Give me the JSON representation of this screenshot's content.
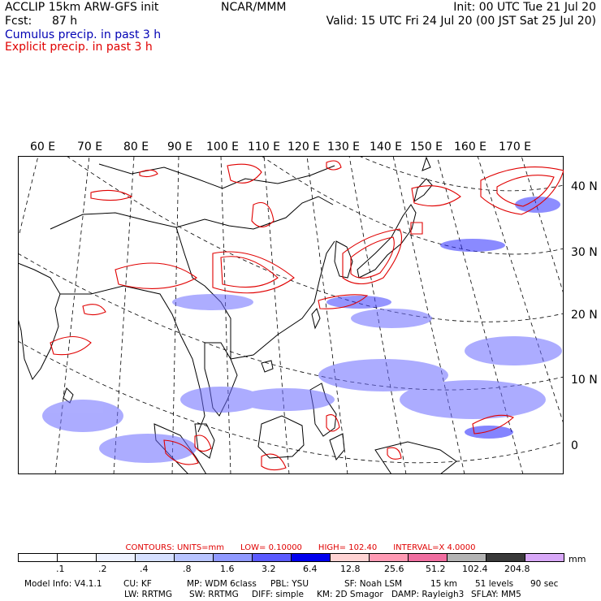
{
  "header": {
    "left_line1": "ACCLIP 15km ARW-GFS init",
    "left_line2_label": "Fcst:",
    "left_line2_value": "87 h",
    "center": "NCAR/MMM",
    "right_line1": "Init: 00 UTC Tue 21 Jul 20",
    "right_line2": "Valid: 15 UTC Fri 24 Jul 20 (00 JST Sat 25 Jul 20)",
    "cumulus_label": "Cumulus precip. in past 3 h",
    "explicit_label": "Explicit precip. in past 3 h",
    "cumulus_color": "#0000b4",
    "explicit_color": "#e00000"
  },
  "map": {
    "lon_labels": [
      "60 E",
      "70 E",
      "80 E",
      "90 E",
      "100 E",
      "110 E",
      "120 E",
      "130 E",
      "140 E",
      "150 E",
      "160 E",
      "170 E"
    ],
    "lat_labels": [
      "40 N",
      "30 N",
      "20 N",
      "10 N",
      "0"
    ]
  },
  "contours": {
    "units": "CONTOURS:  UNITS=mm",
    "low": "LOW=  0.10000",
    "high": "HIGH=  102.40",
    "interval": "INTERVAL=X  4.0000"
  },
  "legend": {
    "labels": [
      ".1",
      ".2",
      ".4",
      ".8",
      "1.6",
      "3.2",
      "6.4",
      "12.8",
      "25.6",
      "51.2",
      "102.4",
      "204.8"
    ],
    "colors": [
      "#ffffff",
      "#ffffff",
      "#eef2ff",
      "#d6e0ff",
      "#b8c4ff",
      "#8f99ff",
      "#5a5aff",
      "#0000ee",
      "#ffd3d3",
      "#ff9ab4",
      "#f06ea0",
      "#b3b3b3",
      "#3a3a3a",
      "#d8a8f8"
    ],
    "unit": "mm"
  },
  "model_info": {
    "line1": [
      "Model Info: V4.1.1",
      "CU: KF",
      "MP: WDM 6class",
      "PBL: YSU",
      "SF: Noah LSM",
      "15 km",
      "51 levels",
      "90 sec"
    ],
    "line2": [
      "LW: RRTMG",
      "SW: RRTMG",
      "DIFF: simple",
      "KM: 2D Smagor",
      "DAMP: Rayleigh3",
      "SFLAY: MM5"
    ]
  }
}
